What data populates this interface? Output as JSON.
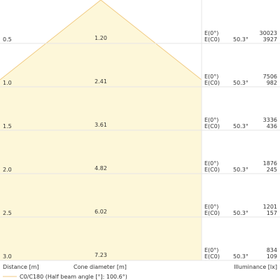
{
  "chart_data": {
    "type": "cone_diagram",
    "xlabel": "Distance [m]",
    "center_label": "Cone diameter [m]",
    "ylabel_right": "Illuminance [lx]",
    "legend": "C0/C180 (Half beam angle [°]: 100.6°)",
    "e0_label": "E(0°)",
    "ec0_label": "E(C0)",
    "rows": [
      {
        "distance": "0.5",
        "diameter": "1.20",
        "angle": "50.3°",
        "e0": "30023",
        "ec0": "3927"
      },
      {
        "distance": "1.0",
        "diameter": "2.41",
        "angle": "50.3°",
        "e0": "7506",
        "ec0": "982"
      },
      {
        "distance": "1.5",
        "diameter": "3.61",
        "angle": "50.3°",
        "e0": "3336",
        "ec0": "436"
      },
      {
        "distance": "2.0",
        "diameter": "4.82",
        "angle": "50.3°",
        "e0": "1876",
        "ec0": "245"
      },
      {
        "distance": "2.5",
        "diameter": "6.02",
        "angle": "50.3°",
        "e0": "1201",
        "ec0": "157"
      },
      {
        "distance": "3.0",
        "diameter": "7.23",
        "angle": "50.3°",
        "e0": "834",
        "ec0": "109"
      }
    ],
    "colors": {
      "fill": "#fdf7d9",
      "line": "#f1cb83",
      "grid": "#e6e6e6"
    }
  }
}
